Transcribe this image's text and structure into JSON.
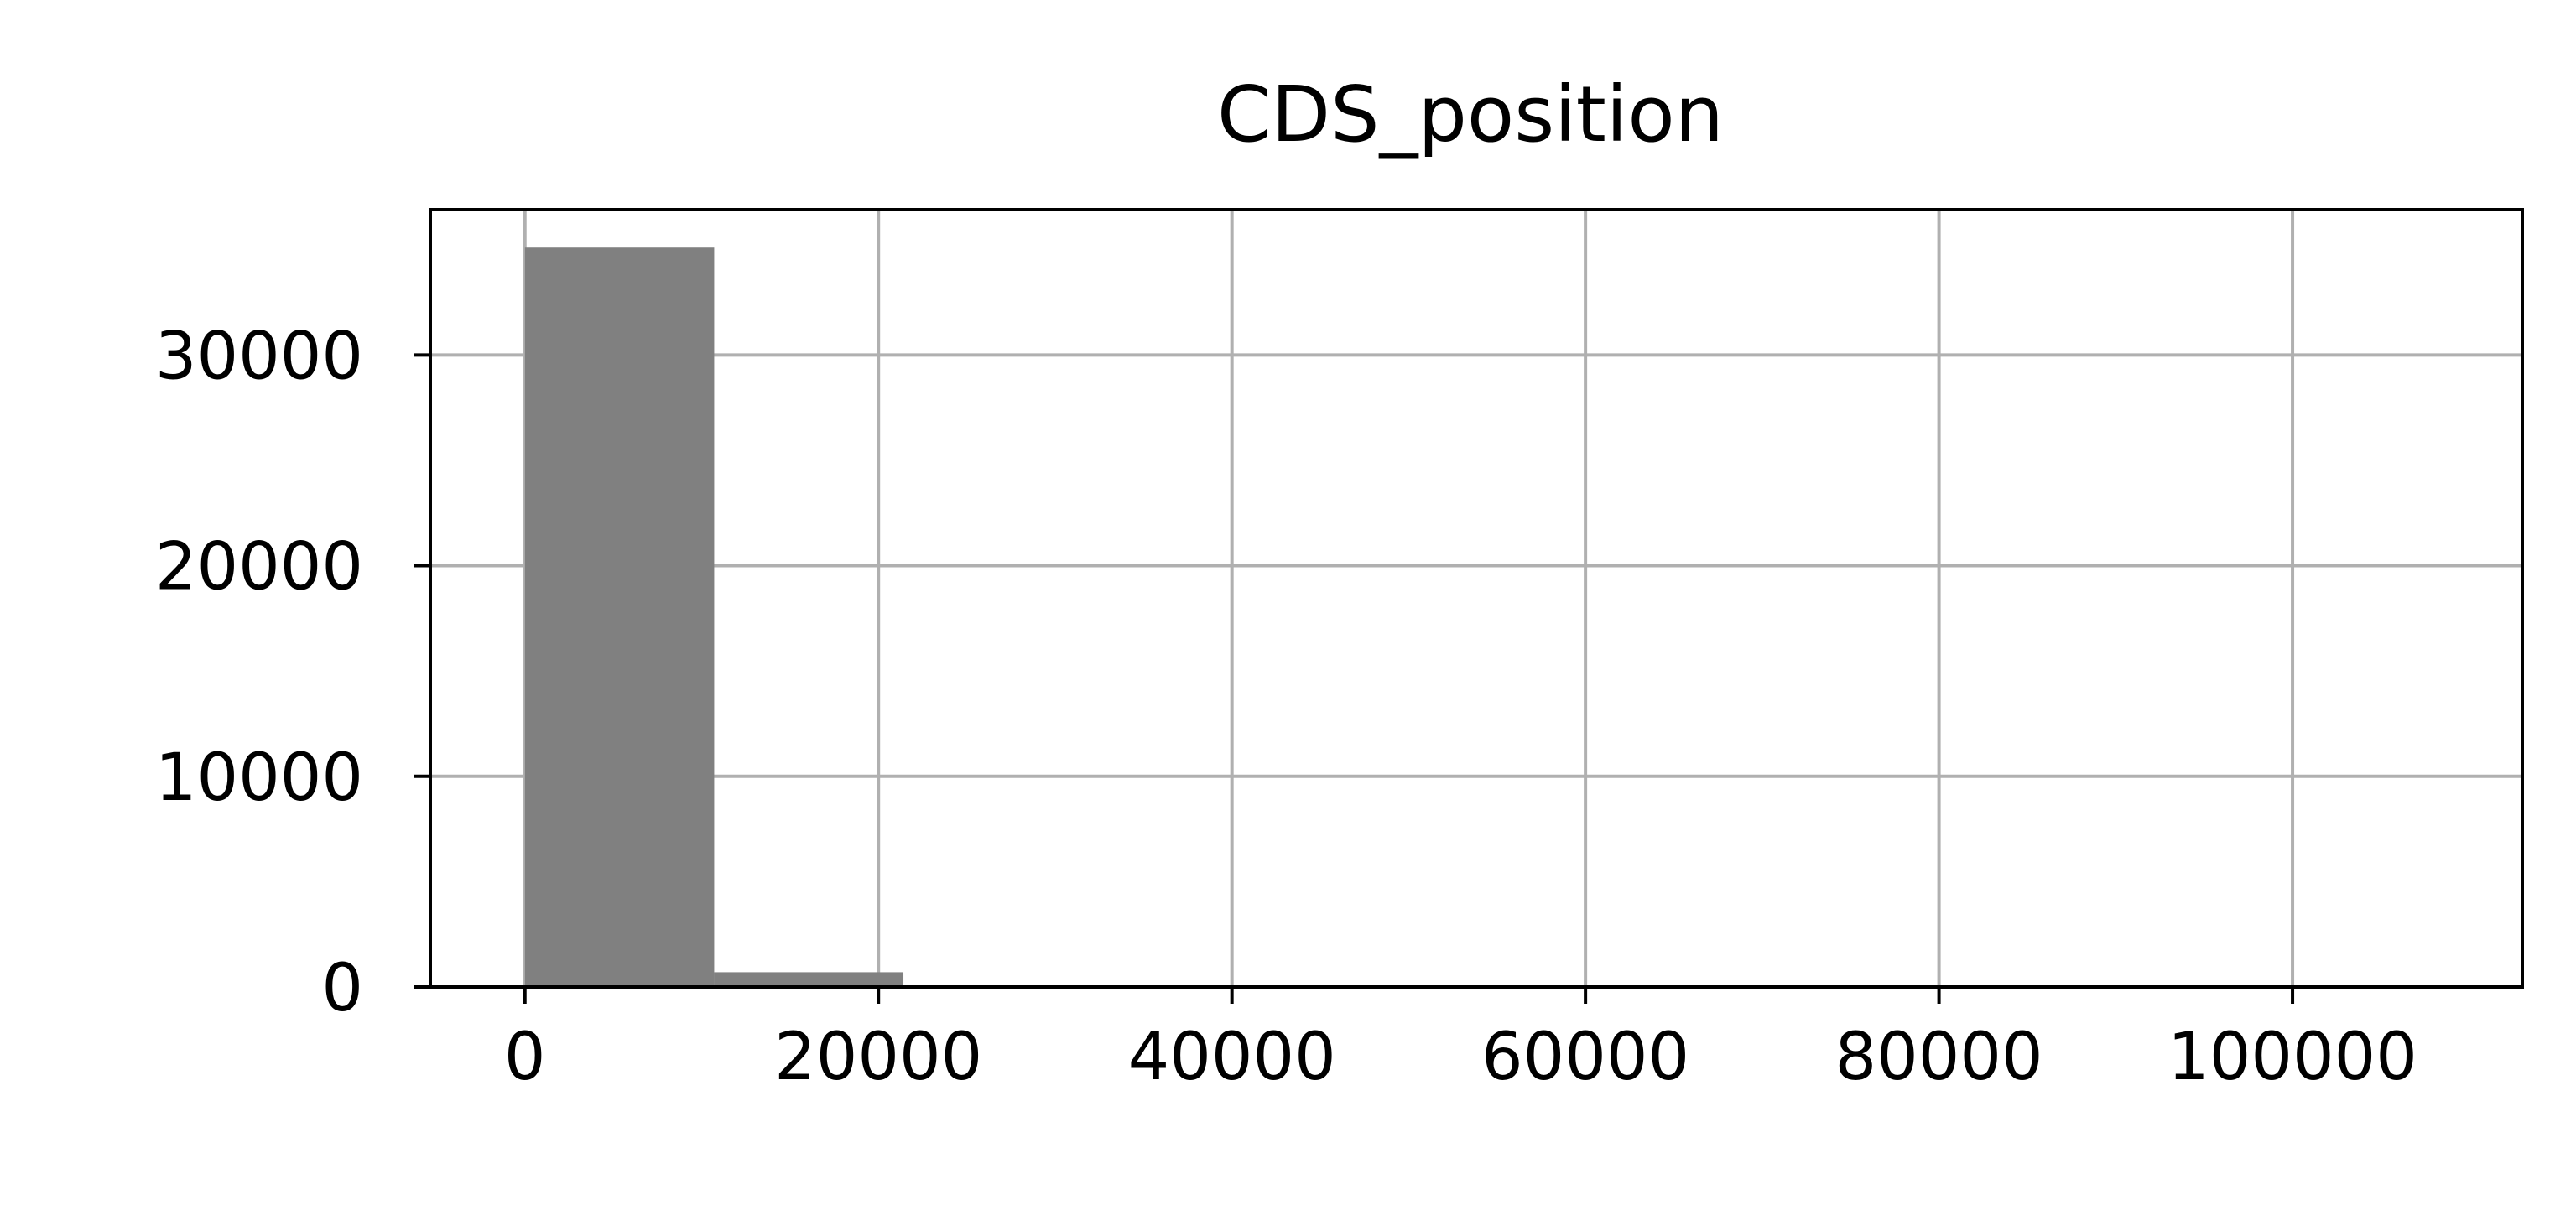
{
  "chart_data": {
    "type": "bar",
    "title": "CDS_position",
    "xlabel": "",
    "ylabel": "",
    "bin_edges": [
      5,
      10710,
      21415,
      32120,
      42825,
      53530,
      64235,
      74940,
      85645,
      96350,
      107055
    ],
    "values": [
      35100,
      700,
      80,
      10,
      5,
      3,
      2,
      1,
      1,
      30
    ],
    "xlim": [
      -5350,
      113000
    ],
    "ylim": [
      0,
      36900
    ],
    "xticks": [
      0,
      20000,
      40000,
      60000,
      80000,
      100000
    ],
    "xtick_labels": [
      "0",
      "20000",
      "40000",
      "60000",
      "80000",
      "100000"
    ],
    "yticks": [
      0,
      10000,
      20000,
      30000
    ],
    "ytick_labels": [
      "0",
      "10000",
      "20000",
      "30000"
    ],
    "grid": true,
    "bar_color": "#808080",
    "grid_color": "#b0b0b0"
  }
}
